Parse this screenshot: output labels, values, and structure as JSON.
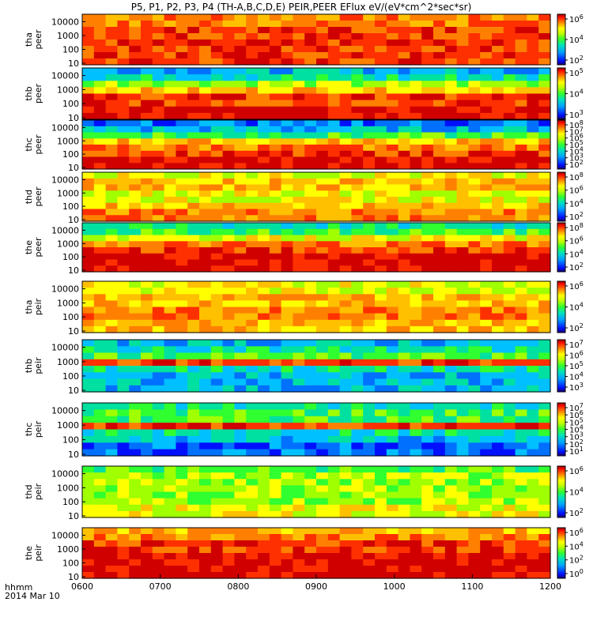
{
  "chart_data": {
    "type": "heatmap",
    "title": "P5, P1, P2, P3, P4 (TH-A,B,C,D,E) PEIR,PEER EFlux eV/(eV*cm^2*sec*sr)",
    "x_ticks": [
      "0600",
      "0700",
      "0800",
      "0900",
      "1000",
      "1100",
      "1200"
    ],
    "x_range": [
      "06:00",
      "12:00"
    ],
    "footer": {
      "line1": "hhmm",
      "line2": "2014 Mar 10"
    },
    "log_scale": true,
    "panels": [
      {
        "probe": "tha",
        "species": "peer",
        "label1": "tha",
        "label2": "peer",
        "yticks": [
          "10000",
          "1000",
          "100",
          "10"
        ],
        "cb_ticks": [
          "10^6",
          "10^4",
          "10^2"
        ]
      },
      {
        "probe": "thb",
        "species": "peer",
        "label1": "thb",
        "label2": "peer",
        "yticks": [
          "10000",
          "1000",
          "100",
          "10"
        ],
        "cb_ticks": [
          "10^5",
          "10^4",
          "10^3"
        ]
      },
      {
        "probe": "thc",
        "species": "peer",
        "label1": "thc",
        "label2": "peer",
        "yticks": [
          "10000",
          "1000",
          "100",
          "10"
        ],
        "cb_ticks": [
          "10^8",
          "10^7",
          "10^6",
          "10^5",
          "10^4",
          "10^3",
          "10^2"
        ]
      },
      {
        "probe": "thd",
        "species": "peer",
        "label1": "thd",
        "label2": "peer",
        "yticks": [
          "10000",
          "1000",
          "100",
          "10"
        ],
        "cb_ticks": [
          "10^8",
          "10^6",
          "10^4",
          "10^2"
        ]
      },
      {
        "probe": "the",
        "species": "peer",
        "label1": "the",
        "label2": "peer",
        "yticks": [
          "10000",
          "1000",
          "100",
          "10"
        ],
        "cb_ticks": [
          "10^8",
          "10^6",
          "10^4",
          "10^2"
        ]
      },
      {
        "probe": "tha",
        "species": "peir",
        "label1": "tha",
        "label2": "peir",
        "yticks": [
          "10000",
          "1000",
          "100",
          "10"
        ],
        "cb_ticks": [
          "10^6",
          "10^4",
          "10^2"
        ]
      },
      {
        "probe": "thb",
        "species": "peir",
        "label1": "thb",
        "label2": "peir",
        "yticks": [
          "10000",
          "1000",
          "100",
          "10"
        ],
        "cb_ticks": [
          "10^7",
          "10^6",
          "10^5",
          "10^4",
          "10^3"
        ]
      },
      {
        "probe": "thc",
        "species": "peir",
        "label1": "thc",
        "label2": "peir",
        "yticks": [
          "10000",
          "1000",
          "100",
          "10"
        ],
        "cb_ticks": [
          "10^7",
          "10^6",
          "10^5",
          "10^4",
          "10^3",
          "10^2",
          "10^1"
        ]
      },
      {
        "probe": "thd",
        "species": "peir",
        "label1": "thd",
        "label2": "peir",
        "yticks": [
          "10000",
          "1000",
          "100",
          "10"
        ],
        "cb_ticks": [
          "10^6",
          "10^4",
          "10^2"
        ]
      },
      {
        "probe": "the",
        "species": "peir",
        "label1": "the",
        "label2": "peir",
        "yticks": [
          "10000",
          "1000",
          "100",
          "10"
        ],
        "cb_ticks": [
          "10^6",
          "10^4",
          "10^2",
          "10^0"
        ]
      }
    ]
  }
}
